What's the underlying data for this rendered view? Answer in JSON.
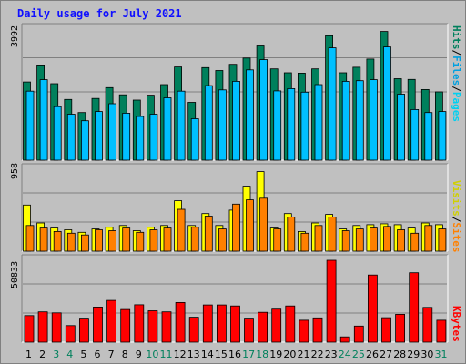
{
  "title": "Daily usage for July 2021",
  "colors": {
    "hits": "#00805c",
    "files": "#00c0ff",
    "pages": "#00e0ff",
    "visits": "#ffff00",
    "sites": "#ff8000",
    "kbytes": "#ff0000",
    "weekday_label": "#000000",
    "weekend_label": "#00805c"
  },
  "legend_top": {
    "pages": "Pages",
    "sep1": "/",
    "files": "Files",
    "sep2": "/",
    "hits": "Hits"
  },
  "legend_mid": {
    "sites": "Sites",
    "sep": "/",
    "visits": "Visits"
  },
  "legend_bot": {
    "kbytes": "KBytes"
  },
  "chart_data": {
    "type": "bar",
    "title": "Daily usage for July 2021",
    "categories": [
      "1",
      "2",
      "3",
      "4",
      "5",
      "6",
      "7",
      "8",
      "9",
      "10",
      "11",
      "12",
      "13",
      "14",
      "15",
      "16",
      "17",
      "18",
      "19",
      "20",
      "21",
      "22",
      "23",
      "24",
      "25",
      "26",
      "27",
      "28",
      "29",
      "30",
      "31"
    ],
    "weekend_days": [
      "3",
      "4",
      "10",
      "11",
      "17",
      "18",
      "24",
      "25",
      "31"
    ],
    "panels": [
      {
        "name": "hits_files_pages",
        "max_label": "3992",
        "ylim": [
          0,
          3992
        ],
        "series": [
          {
            "name": "Hits",
            "values": [
              2380,
              2900,
              2330,
              1850,
              1450,
              1880,
              2210,
              1990,
              1830,
              1980,
              2300,
              2840,
              1760,
              2820,
              2730,
              2920,
              3110,
              3480,
              2780,
              2660,
              2650,
              2780,
              3790,
              2660,
              2830,
              3080,
              3920,
              2480,
              2460,
              2150,
              2080
            ]
          },
          {
            "name": "Files",
            "values": [
              2100,
              2450,
              1630,
              1400,
              1200,
              1480,
              1720,
              1430,
              1330,
              1400,
              1900,
              2100,
              1260,
              2270,
              2140,
              2400,
              2750,
              3060,
              2110,
              2180,
              2070,
              2300,
              3420,
              2400,
              2420,
              2450,
              3450,
              2010,
              1540,
              1450,
              1480
            ]
          },
          {
            "name": "Pages",
            "values": [
              0,
              0,
              0,
              0,
              0,
              0,
              0,
              0,
              0,
              0,
              0,
              0,
              0,
              0,
              0,
              0,
              0,
              0,
              0,
              0,
              0,
              0,
              0,
              0,
              0,
              0,
              0,
              0,
              0,
              0,
              0
            ]
          }
        ]
      },
      {
        "name": "visits_sites",
        "max_label": "958",
        "ylim": [
          0,
          958
        ],
        "series": [
          {
            "name": "Visits",
            "values": [
              540,
              330,
              270,
              250,
              220,
              260,
              280,
              300,
              240,
              280,
              300,
              590,
              300,
              440,
              300,
              480,
              760,
              930,
              270,
              440,
              230,
              330,
              430,
              260,
              300,
              310,
              320,
              310,
              270,
              330,
              310
            ]
          },
          {
            "name": "Sites",
            "values": [
              300,
              270,
              230,
              210,
              190,
              250,
              240,
              270,
              220,
              250,
              270,
              490,
              280,
              410,
              260,
              550,
              600,
              620,
              260,
              400,
              210,
              300,
              400,
              240,
              260,
              270,
              290,
              250,
              210,
              300,
              260
            ]
          }
        ]
      },
      {
        "name": "kbytes",
        "max_label": "50833",
        "ylim": [
          0,
          50833
        ],
        "series": [
          {
            "name": "KBytes",
            "values": [
              16500,
              18800,
              18200,
              10300,
              14900,
              21800,
              25900,
              20300,
              23200,
              19500,
              18800,
              24600,
              15500,
              23100,
              23100,
              22500,
              14900,
              18500,
              20500,
              22500,
              13600,
              15100,
              50833,
              3300,
              10000,
              41700,
              15200,
              17300,
              43100,
              21600,
              13600
            ]
          }
        ]
      }
    ]
  }
}
